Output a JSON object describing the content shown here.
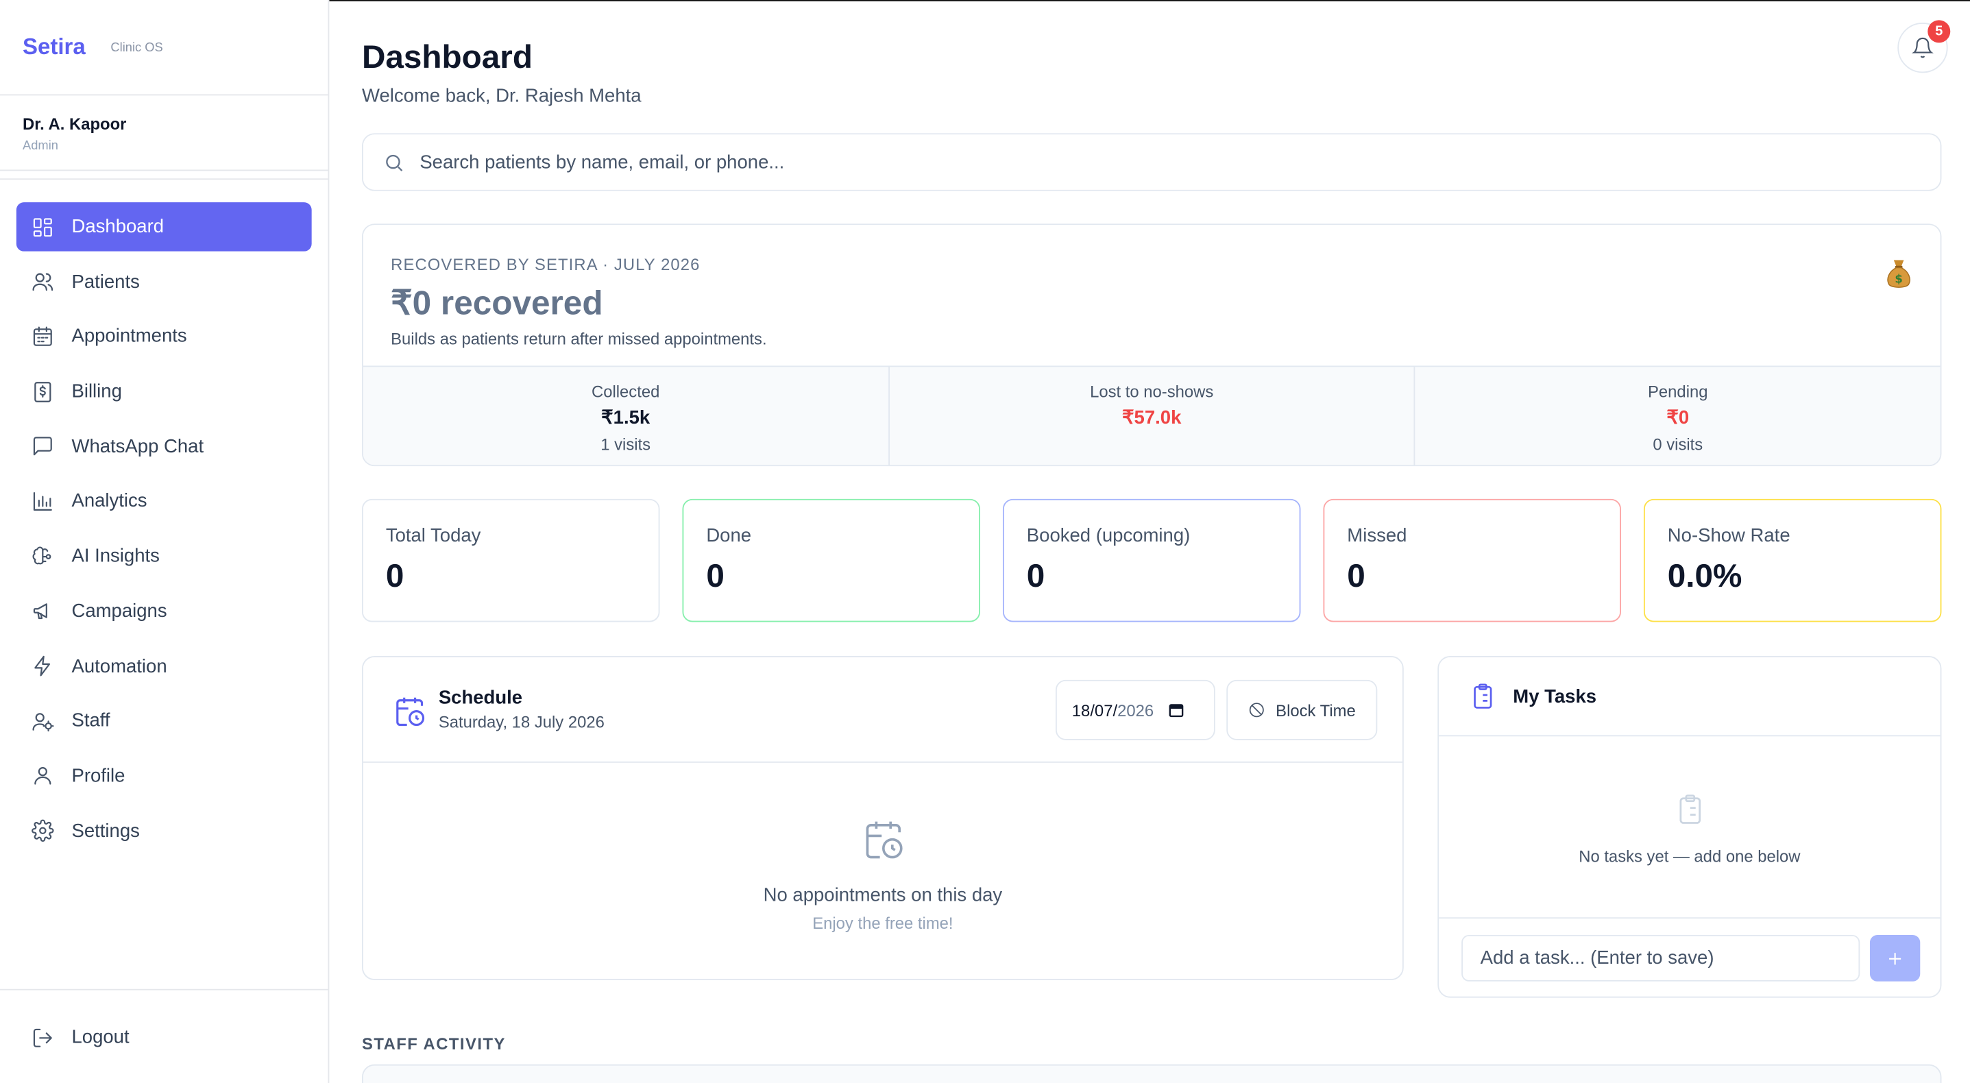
{
  "brand": {
    "name": "Setira",
    "tagline": "Clinic OS"
  },
  "user": {
    "name": "Dr. A. Kapoor",
    "role": "Admin"
  },
  "nav": {
    "items": [
      {
        "label": "Dashboard",
        "icon": "dashboard-icon",
        "active": true
      },
      {
        "label": "Patients",
        "icon": "users-icon"
      },
      {
        "label": "Appointments",
        "icon": "calendar-icon"
      },
      {
        "label": "Billing",
        "icon": "receipt-icon"
      },
      {
        "label": "WhatsApp Chat",
        "icon": "chat-icon"
      },
      {
        "label": "Analytics",
        "icon": "bar-chart-icon"
      },
      {
        "label": "AI Insights",
        "icon": "brain-icon"
      },
      {
        "label": "Campaigns",
        "icon": "megaphone-icon"
      },
      {
        "label": "Automation",
        "icon": "lightning-icon"
      },
      {
        "label": "Staff",
        "icon": "staff-icon"
      },
      {
        "label": "Profile",
        "icon": "user-icon"
      },
      {
        "label": "Settings",
        "icon": "gear-icon"
      }
    ],
    "logout": "Logout"
  },
  "header": {
    "title": "Dashboard",
    "welcome": "Welcome back, Dr. Rajesh Mehta",
    "notifications": "5"
  },
  "search": {
    "placeholder": "Search patients by name, email, or phone..."
  },
  "recovered": {
    "eyebrow": "RECOVERED BY SETIRA · JULY 2026",
    "amount": "₹0 recovered",
    "note": "Builds as patients return after missed appointments.",
    "stats": [
      {
        "label": "Collected",
        "value": "₹1.5k",
        "sub": "1 visits"
      },
      {
        "label": "Lost to no-shows",
        "value": "₹57.0k",
        "sub": ""
      },
      {
        "label": "Pending",
        "value": "₹0",
        "sub": "0 visits"
      }
    ]
  },
  "stats": [
    {
      "label": "Total Today",
      "value": "0",
      "border": "#e2e8f0"
    },
    {
      "label": "Done",
      "value": "0",
      "border": "#86efac"
    },
    {
      "label": "Booked (upcoming)",
      "value": "0",
      "border": "#a5b4fc"
    },
    {
      "label": "Missed",
      "value": "0",
      "border": "#fca5a5"
    },
    {
      "label": "No-Show Rate",
      "value": "0.0%",
      "border": "#fde047"
    }
  ],
  "schedule": {
    "title": "Schedule",
    "date": "Saturday, 18 July 2026",
    "date_input_day": "18/07/",
    "date_input_year": "2026",
    "block_time": "Block Time",
    "empty_title": "No appointments on this day",
    "empty_sub": "Enjoy the free time!"
  },
  "tasks": {
    "title": "My Tasks",
    "empty": "No tasks yet — add one below",
    "input_placeholder": "Add a task... (Enter to save)"
  },
  "staff_activity": {
    "label": "STAFF ACTIVITY"
  },
  "colors": {
    "accent": "#6366f1",
    "brand": "#5b5ff0",
    "danger": "#ef4444"
  }
}
